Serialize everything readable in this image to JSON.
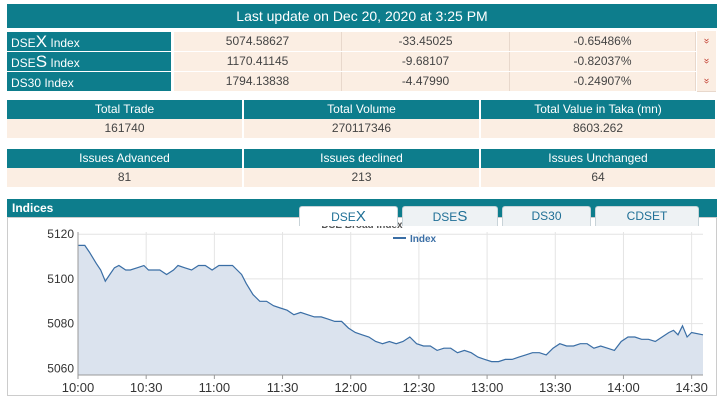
{
  "header": {
    "title": "Last update on Dec 20, 2020 at 3:25 PM"
  },
  "indices": [
    {
      "prefix": "DSE",
      "big": "X",
      "suffix": " Index",
      "value": "5074.58627",
      "change": "-33.45025",
      "percent": "-0.65486%",
      "arrow": "»"
    },
    {
      "prefix": "DSE",
      "big": "S",
      "suffix": " Index",
      "value": "1170.41145",
      "change": "-9.68107",
      "percent": "-0.82037%",
      "arrow": "»"
    },
    {
      "prefix": "DS30 Index",
      "big": "",
      "suffix": "",
      "value": "1794.13838",
      "change": "-4.47990",
      "percent": "-0.24907%",
      "arrow": "»"
    }
  ],
  "trade_stats": {
    "headers": [
      "Total Trade",
      "Total Volume",
      "Total Value in Taka (mn)"
    ],
    "values": [
      "161740",
      "270117346",
      "8603.262"
    ]
  },
  "issue_stats": {
    "headers": [
      "Issues Advanced",
      "Issues declined",
      "Issues Unchanged"
    ],
    "values": [
      "81",
      "213",
      "64"
    ]
  },
  "indices_section": {
    "label": "Indices"
  },
  "tabs": [
    {
      "prefix": "DSE",
      "big": "X"
    },
    {
      "prefix": "DSE",
      "big": "S"
    },
    {
      "prefix": "DS30",
      "big": ""
    },
    {
      "prefix": "CDSET",
      "big": ""
    }
  ],
  "colors": {
    "teal": "#0d7d8c",
    "cell_bg": "#fbeee3",
    "line": "#3a6ea5",
    "area": "#dbe3ee",
    "arrow": "#c0392b"
  },
  "chart_data": {
    "type": "area",
    "title": "DSE Broad Index",
    "legend": "Index",
    "legend_position": "top-center",
    "x_ticks": [
      "10:00",
      "10:30",
      "11:00",
      "11:30",
      "12:00",
      "12:30",
      "13:00",
      "13:30",
      "14:00",
      "14:30"
    ],
    "y_ticks": [
      "5120",
      "5100",
      "5080",
      "5060"
    ],
    "x_range": [
      0,
      275
    ],
    "ylim": [
      5057,
      5121
    ],
    "grid": true,
    "x": [
      0,
      3,
      5,
      8,
      10,
      12,
      14,
      16,
      18,
      21,
      23,
      26,
      29,
      31,
      34,
      36,
      39,
      42,
      44,
      47,
      50,
      53,
      56,
      59,
      62,
      65,
      68,
      70,
      72,
      74,
      77,
      80,
      83,
      86,
      89,
      92,
      95,
      98,
      101,
      104,
      107,
      110,
      113,
      116,
      119,
      122,
      125,
      128,
      131,
      134,
      137,
      140,
      143,
      146,
      149,
      152,
      155,
      158,
      161,
      164,
      167,
      170,
      173,
      176,
      179,
      182,
      185,
      188,
      191,
      194,
      197,
      200,
      203,
      206,
      209,
      212,
      215,
      218,
      221,
      224,
      227,
      230,
      233,
      236,
      239,
      242,
      245,
      248,
      251,
      254,
      257,
      260,
      262,
      264,
      266,
      268,
      270,
      275
    ],
    "values": [
      5115,
      5115,
      5112,
      5107,
      5104,
      5099,
      5102,
      5105,
      5106,
      5104,
      5104,
      5105,
      5106,
      5104,
      5104,
      5104,
      5102,
      5104,
      5106,
      5105,
      5104,
      5106,
      5106,
      5104,
      5106,
      5106,
      5106,
      5104,
      5102,
      5098,
      5093,
      5090,
      5090,
      5088,
      5087,
      5086,
      5084,
      5085,
      5084,
      5083,
      5083,
      5082,
      5081,
      5081,
      5078,
      5076,
      5075,
      5074,
      5072,
      5071,
      5072,
      5071,
      5072,
      5074,
      5071,
      5070,
      5070,
      5068,
      5069,
      5069,
      5067,
      5068,
      5067,
      5065,
      5064,
      5063,
      5063,
      5064,
      5064,
      5065,
      5066,
      5067,
      5067,
      5066,
      5069,
      5071,
      5070,
      5070,
      5071,
      5071,
      5069,
      5070,
      5069,
      5068,
      5072,
      5074,
      5074,
      5073,
      5073,
      5072,
      5074,
      5076,
      5077,
      5075,
      5079,
      5074,
      5076,
      5075
    ]
  }
}
